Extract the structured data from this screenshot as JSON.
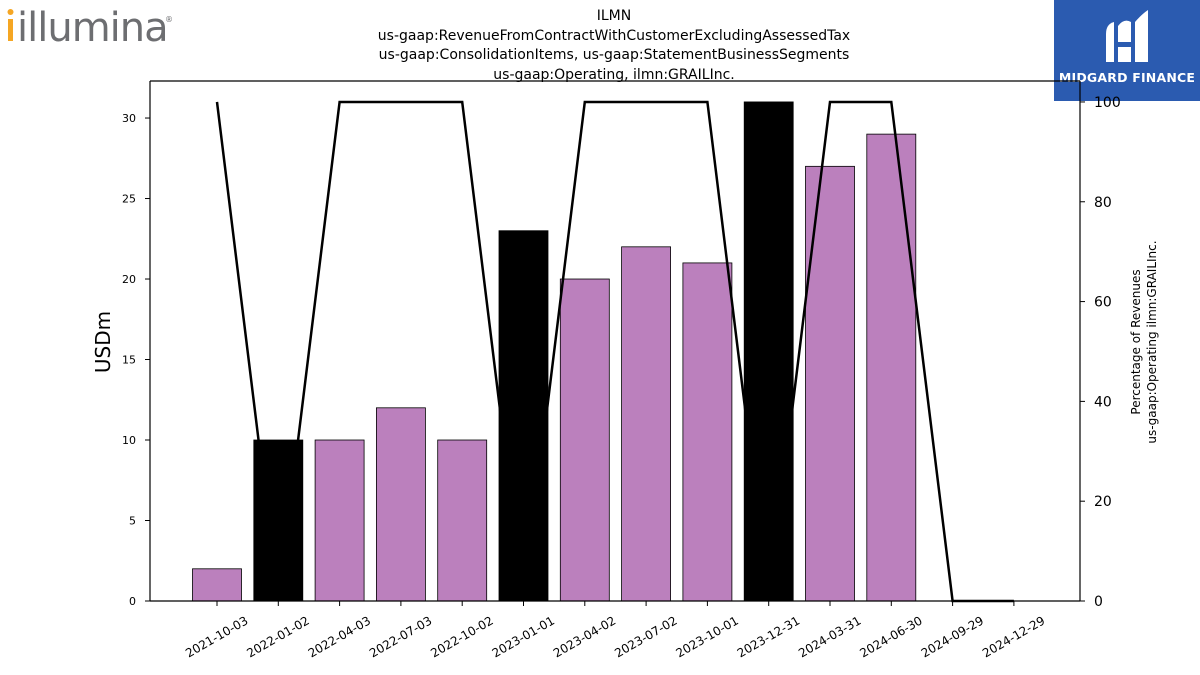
{
  "logos": {
    "left_text": "illumina",
    "right_text": "MIDGARD FINANCE"
  },
  "chart_data": {
    "type": "bar",
    "title_lines": [
      "ILMN",
      "us-gaap:RevenueFromContractWithCustomerExcludingAssessedTax",
      "us-gaap:ConsolidationItems, us-gaap:StatementBusinessSegments",
      "us-gaap:Operating, ilmn:GRAILInc."
    ],
    "ylabel": "USDm",
    "y2label_lines": [
      "Percentage of Revenues",
      "us-gaap:Operating ilmn:GRAILInc."
    ],
    "categories": [
      "2021-10-03",
      "2022-01-02",
      "2022-04-03",
      "2022-07-03",
      "2022-10-02",
      "2023-01-01",
      "2023-04-02",
      "2023-07-02",
      "2023-10-01",
      "2023-12-31",
      "2024-03-31",
      "2024-06-30",
      "2024-09-29",
      "2024-12-29"
    ],
    "values": [
      2,
      10,
      10,
      12,
      10,
      23,
      20,
      22,
      21,
      31,
      27,
      29,
      0,
      0
    ],
    "highlight": [
      false,
      true,
      false,
      false,
      false,
      true,
      false,
      false,
      false,
      true,
      false,
      false,
      false,
      false
    ],
    "bar_color": "#bb80bd",
    "highlight_color": "#000000",
    "line_series": {
      "name": "Percentage of Revenues",
      "values": [
        100,
        0,
        100,
        100,
        100,
        0,
        100,
        100,
        100,
        0,
        100,
        100,
        0,
        0
      ],
      "color": "#000000"
    },
    "ylim": [
      0,
      32.3
    ],
    "y2lim": [
      0,
      104.2
    ],
    "yticks": [
      0,
      5,
      10,
      15,
      20,
      25,
      30
    ],
    "y2ticks": [
      0,
      20,
      40,
      60,
      80,
      100
    ],
    "grid": false
  }
}
